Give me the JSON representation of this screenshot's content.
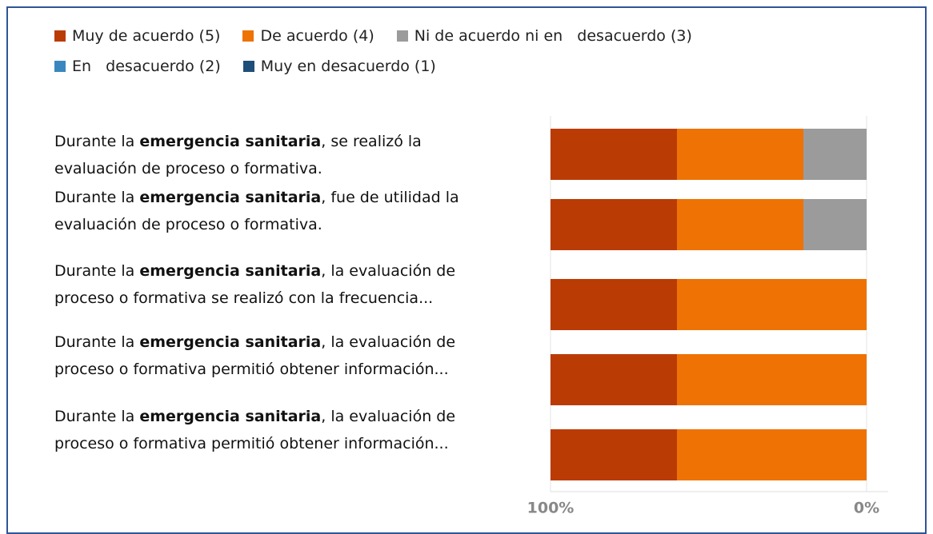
{
  "chart_data": {
    "type": "stacked_barh",
    "series": [
      {
        "name": "Muy de acuerdo (5)",
        "color": "#bb3b05",
        "values": [
          40,
          40,
          40,
          40,
          40
        ]
      },
      {
        "name": "De acuerdo (4)",
        "color": "#ee7204",
        "values": [
          40,
          40,
          60,
          60,
          60
        ]
      },
      {
        "name": "Ni de acuerdo ni en   desacuerdo (3)",
        "color": "#9b9b9b",
        "values": [
          20,
          20,
          0,
          0,
          0
        ]
      },
      {
        "name": "En   desacuerdo (2)",
        "color": "#3a87c0",
        "values": [
          0,
          0,
          0,
          0,
          0
        ]
      },
      {
        "name": "Muy en desacuerdo (1)",
        "color": "#1f4e79",
        "values": [
          0,
          0,
          0,
          0,
          0
        ]
      }
    ],
    "categories": [
      [
        "Durante la ",
        "emergencia sanitaria",
        ", se realizó la evaluación de proceso o formativa."
      ],
      [
        "Durante la ",
        "emergencia sanitaria",
        ", fue de utilidad la evaluación de proceso o formativa."
      ],
      [
        "Durante la ",
        "emergencia sanitaria",
        ", la evaluación de proceso o formativa se realizó con la frecuencia..."
      ],
      [
        "Durante la ",
        "emergencia sanitaria",
        ", la evaluación de proceso o formativa permitió obtener información..."
      ],
      [
        "Durante la ",
        "emergencia sanitaria",
        ", la evaluación de proceso o formativa permitió obtener información..."
      ]
    ],
    "xlim": [
      0,
      100
    ],
    "xticks": [
      {
        "value": 100,
        "label": "100%"
      },
      {
        "value": 0,
        "label": "0%"
      }
    ],
    "x_reversed": true,
    "grid": true
  }
}
